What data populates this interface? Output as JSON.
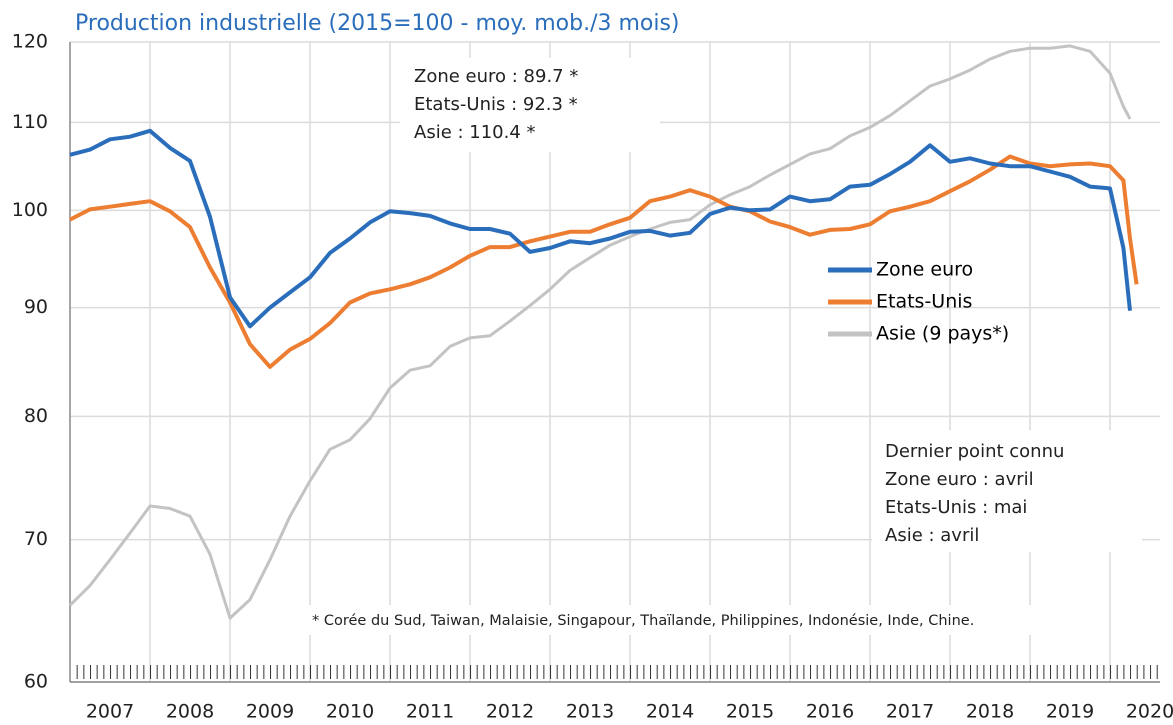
{
  "chart_data": {
    "type": "line",
    "title": "Production industrielle (2015=100 - moy. mob./3 mois)",
    "x": [
      2007,
      2007.25,
      2007.5,
      2007.75,
      2008,
      2008.25,
      2008.5,
      2008.75,
      2009,
      2009.25,
      2009.5,
      2009.75,
      2010,
      2010.25,
      2010.5,
      2010.75,
      2011,
      2011.25,
      2011.5,
      2011.75,
      2012,
      2012.25,
      2012.5,
      2012.75,
      2013,
      2013.25,
      2013.5,
      2013.75,
      2014,
      2014.25,
      2014.5,
      2014.75,
      2015,
      2015.25,
      2015.5,
      2015.75,
      2016,
      2016.25,
      2016.5,
      2016.75,
      2017,
      2017.25,
      2017.5,
      2017.75,
      2018,
      2018.25,
      2018.5,
      2018.75,
      2019,
      2019.25,
      2019.5,
      2019.75,
      2020,
      2020.167,
      2020.25,
      2020.333
    ],
    "series": [
      {
        "name": "Zone euro",
        "color": "#2a6ebb",
        "values": [
          106.2,
          106.8,
          108,
          108.3,
          109,
          107,
          105.5,
          99.3,
          91,
          88.2,
          90,
          91.5,
          93,
          95.5,
          97,
          98.7,
          99.9,
          99.7,
          99.4,
          98.6,
          98,
          98,
          97.5,
          95.6,
          96,
          96.7,
          96.5,
          97,
          97.7,
          97.8,
          97.3,
          97.6,
          99.6,
          100.3,
          100,
          100.1,
          101.5,
          101,
          101.2,
          102.6,
          102.8,
          104,
          105.4,
          107.3,
          105.4,
          105.8,
          105.2,
          104.9,
          104.9,
          104.3,
          103.7,
          102.6,
          102.4,
          96,
          89.7,
          null
        ]
      },
      {
        "name": "Etats-Unis",
        "color": "#ed7d31",
        "values": [
          99,
          100.1,
          100.4,
          100.7,
          101,
          99.9,
          98.2,
          94,
          90.5,
          86.5,
          84.4,
          86,
          87,
          88.5,
          90.5,
          91.4,
          91.8,
          92.3,
          93,
          94,
          95.2,
          96.1,
          96.1,
          96.7,
          97.2,
          97.7,
          97.7,
          98.5,
          99.2,
          101,
          101.5,
          102.2,
          101.5,
          100.4,
          99.9,
          98.8,
          98.2,
          97.4,
          97.9,
          98,
          98.5,
          99.9,
          100.4,
          101,
          102.1,
          103.2,
          104.5,
          106,
          105.2,
          104.9,
          105.1,
          105.2,
          104.9,
          103.3,
          97,
          92.3
        ]
      },
      {
        "name": "Asie (9 pays*)",
        "color": "#c3c3c3",
        "values": [
          65.2,
          66.6,
          68.5,
          70.5,
          72.6,
          72.4,
          71.8,
          68.9,
          64.3,
          65.6,
          68.5,
          71.8,
          74.6,
          77.2,
          78,
          79.8,
          82.5,
          84.1,
          84.5,
          86.3,
          87.1,
          87.3,
          88.7,
          90.2,
          91.8,
          93.7,
          95,
          96.3,
          97.2,
          98,
          98.7,
          99,
          100.6,
          101.7,
          102.6,
          103.9,
          105.1,
          106.3,
          106.9,
          108.4,
          109.4,
          110.8,
          112.6,
          114.4,
          115.3,
          116.4,
          117.8,
          118.8,
          119.2,
          119.2,
          119.5,
          118.8,
          116,
          111.9,
          110.4,
          null
        ]
      }
    ],
    "xlim": [
      2007,
      2020.625
    ],
    "xticks": [
      2007,
      2008,
      2009,
      2010,
      2011,
      2012,
      2013,
      2014,
      2015,
      2016,
      2017,
      2018,
      2019,
      2020
    ],
    "ylim": [
      60,
      120
    ],
    "yticks": [
      60,
      70,
      80,
      90,
      100,
      110,
      120
    ],
    "log_scale": true,
    "grid": true,
    "legend": "center right",
    "annotations": {
      "latest_values": [
        "Zone euro : 89.7 *",
        "Etats-Unis : 92.3 *",
        "Asie : 110.4 *"
      ],
      "last_point": [
        "Dernier point connu",
        "Zone euro : avril",
        "Etats-Unis : mai",
        "Asie : avril"
      ],
      "footnote": "* Corée du Sud, Taiwan, Malaisie, Singapour, Thaïlande, Philippines, Indonésie, Inde, Chine."
    }
  }
}
